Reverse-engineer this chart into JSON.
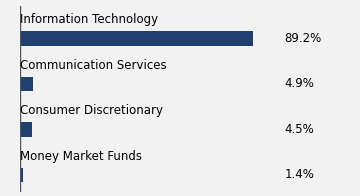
{
  "categories": [
    "Information Technology",
    "Communication Services",
    "Consumer Discretionary",
    "Money Market Funds"
  ],
  "values": [
    89.2,
    4.9,
    4.5,
    1.4
  ],
  "labels": [
    "89.2%",
    "4.9%",
    "4.5%",
    "1.4%"
  ],
  "bar_color": "#1f3f6e",
  "background_color": "#f2f2f2",
  "label_fontsize": 8.5,
  "value_fontsize": 8.5,
  "xlim": [
    0,
    100
  ],
  "spine_color": "#555555",
  "spine_linewidth": 1.0
}
